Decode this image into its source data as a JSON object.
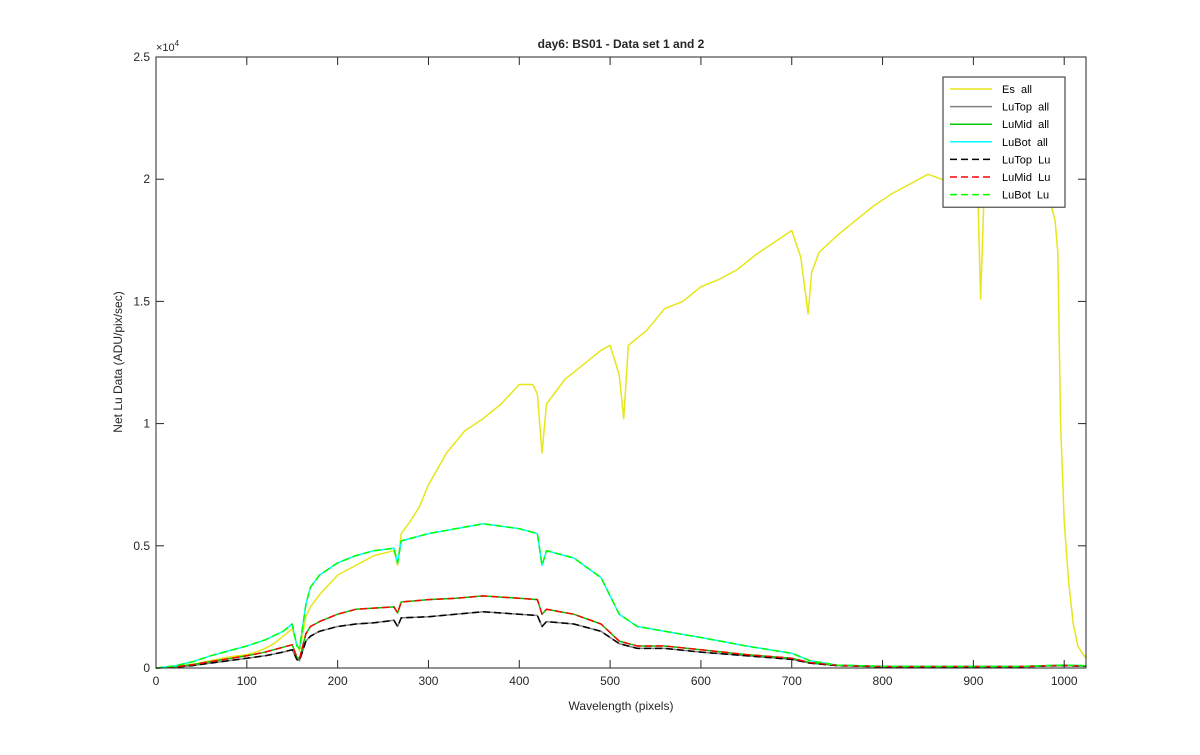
{
  "chart_data": {
    "type": "line",
    "title": "day6: BS01 - Data set 1 and 2",
    "xlabel": "Wavelength (pixels)",
    "ylabel": "Net Lu Data (ADU/pix/sec)",
    "xlim": [
      0,
      1024
    ],
    "ylim": [
      0,
      25000
    ],
    "x_ticks": [
      0,
      100,
      200,
      300,
      400,
      500,
      600,
      700,
      800,
      900,
      1000
    ],
    "y_ticks": [
      0,
      5000,
      10000,
      15000,
      20000,
      25000
    ],
    "y_tick_labels": [
      "0",
      "0.5",
      "1",
      "1.5",
      "2",
      "2.5"
    ],
    "y_exponent_base": "×10",
    "y_exponent_power": "4",
    "grid": false,
    "legend_position": "top-right",
    "series": [
      {
        "name": "Es  all",
        "color": "#e6e619",
        "style": "solid",
        "x": [
          0,
          20,
          40,
          60,
          80,
          100,
          110,
          120,
          130,
          140,
          150,
          155,
          158,
          165,
          170,
          180,
          200,
          220,
          240,
          262,
          266,
          270,
          280,
          290,
          300,
          320,
          340,
          360,
          380,
          400,
          415,
          420,
          425,
          430,
          450,
          470,
          490,
          500,
          510,
          515,
          520,
          540,
          560,
          580,
          600,
          620,
          640,
          660,
          680,
          700,
          710,
          718,
          722,
          730,
          750,
          770,
          790,
          810,
          830,
          850,
          865,
          880,
          895,
          905,
          908,
          912,
          920,
          940,
          960,
          975,
          985,
          990,
          993,
          996,
          1000,
          1005,
          1010,
          1015,
          1020,
          1024
        ],
        "y": [
          0,
          50,
          150,
          300,
          450,
          550,
          650,
          800,
          1000,
          1300,
          1600,
          1000,
          700,
          2100,
          2500,
          3000,
          3800,
          4200,
          4600,
          4800,
          4200,
          5500,
          6000,
          6600,
          7500,
          8800,
          9700,
          10200,
          10800,
          11600,
          11600,
          11200,
          8800,
          10800,
          11800,
          12400,
          13000,
          13200,
          12000,
          10200,
          13200,
          13800,
          14700,
          15000,
          15600,
          15900,
          16300,
          16900,
          17400,
          17900,
          16800,
          14500,
          16200,
          17000,
          17700,
          18300,
          18900,
          19400,
          19800,
          20200,
          20000,
          19800,
          19500,
          19300,
          15100,
          19700,
          19500,
          19500,
          19400,
          19200,
          19000,
          18300,
          17000,
          10000,
          6000,
          3500,
          1800,
          900,
          600,
          400
        ]
      },
      {
        "name": "LuTop  all",
        "color": "#808080",
        "style": "solid",
        "x": [
          0,
          20,
          40,
          60,
          80,
          100,
          120,
          140,
          150,
          155,
          158,
          165,
          170,
          180,
          200,
          220,
          240,
          262,
          266,
          270,
          300,
          330,
          360,
          380,
          400,
          420,
          425,
          430,
          460,
          490,
          510,
          530,
          560,
          600,
          650,
          700,
          720,
          750,
          800,
          850,
          900,
          950,
          980,
          1000,
          1024
        ],
        "y": [
          0,
          30,
          100,
          200,
          300,
          400,
          500,
          650,
          750,
          350,
          300,
          1100,
          1300,
          1500,
          1700,
          1800,
          1850,
          1950,
          1700,
          2050,
          2100,
          2200,
          2300,
          2250,
          2200,
          2150,
          1700,
          1900,
          1800,
          1500,
          1000,
          800,
          800,
          650,
          500,
          350,
          200,
          100,
          50,
          50,
          50,
          50,
          80,
          100,
          70
        ]
      },
      {
        "name": "LuMid  all",
        "color": "#00c800",
        "style": "solid",
        "x": [
          0,
          20,
          40,
          60,
          80,
          100,
          120,
          140,
          150,
          155,
          158,
          165,
          170,
          180,
          200,
          220,
          240,
          262,
          266,
          270,
          300,
          330,
          360,
          380,
          400,
          420,
          425,
          430,
          460,
          490,
          510,
          530,
          560,
          600,
          650,
          700,
          720,
          750,
          800,
          850,
          900,
          950,
          980,
          1000,
          1024
        ],
        "y": [
          0,
          40,
          130,
          260,
          380,
          500,
          650,
          850,
          950,
          450,
          380,
          1400,
          1700,
          1900,
          2200,
          2400,
          2450,
          2500,
          2250,
          2700,
          2800,
          2850,
          2950,
          2900,
          2850,
          2800,
          2200,
          2400,
          2200,
          1800,
          1100,
          900,
          900,
          750,
          550,
          400,
          220,
          110,
          60,
          60,
          60,
          60,
          90,
          110,
          80
        ]
      },
      {
        "name": "LuBot  all",
        "color": "#00ffff",
        "style": "solid",
        "x": [
          0,
          20,
          40,
          60,
          80,
          100,
          120,
          140,
          150,
          155,
          158,
          165,
          170,
          180,
          200,
          220,
          240,
          262,
          266,
          270,
          300,
          330,
          360,
          380,
          400,
          420,
          425,
          430,
          460,
          490,
          510,
          530,
          560,
          600,
          650,
          700,
          720,
          750,
          800,
          850,
          900,
          950,
          980,
          1000,
          1024
        ],
        "y": [
          0,
          80,
          250,
          500,
          700,
          900,
          1150,
          1500,
          1800,
          900,
          800,
          2600,
          3300,
          3800,
          4300,
          4600,
          4800,
          4900,
          4300,
          5200,
          5500,
          5700,
          5900,
          5800,
          5700,
          5500,
          4200,
          4800,
          4500,
          3700,
          2200,
          1700,
          1500,
          1250,
          900,
          600,
          300,
          120,
          70,
          60,
          60,
          60,
          100,
          120,
          90
        ]
      },
      {
        "name": "LuTop  Lu",
        "color": "#000000",
        "style": "dashed",
        "x": [
          0,
          20,
          40,
          60,
          80,
          100,
          120,
          140,
          150,
          155,
          158,
          165,
          170,
          180,
          200,
          220,
          240,
          262,
          266,
          270,
          300,
          330,
          360,
          380,
          400,
          420,
          425,
          430,
          460,
          490,
          510,
          530,
          560,
          600,
          650,
          700,
          720,
          750,
          800,
          850,
          900,
          950,
          980,
          1000,
          1024
        ],
        "y": [
          0,
          30,
          100,
          200,
          300,
          400,
          500,
          650,
          750,
          350,
          300,
          1100,
          1300,
          1500,
          1700,
          1800,
          1850,
          1950,
          1700,
          2050,
          2100,
          2200,
          2300,
          2250,
          2200,
          2150,
          1700,
          1900,
          1800,
          1500,
          1000,
          800,
          800,
          650,
          500,
          350,
          200,
          100,
          50,
          50,
          50,
          50,
          80,
          100,
          70
        ]
      },
      {
        "name": "LuMid  Lu",
        "color": "#ff0000",
        "style": "dashed",
        "x": [
          0,
          20,
          40,
          60,
          80,
          100,
          120,
          140,
          150,
          155,
          158,
          165,
          170,
          180,
          200,
          220,
          240,
          262,
          266,
          270,
          300,
          330,
          360,
          380,
          400,
          420,
          425,
          430,
          460,
          490,
          510,
          530,
          560,
          600,
          650,
          700,
          720,
          750,
          800,
          850,
          900,
          950,
          980,
          1000,
          1024
        ],
        "y": [
          0,
          40,
          130,
          260,
          380,
          500,
          650,
          850,
          950,
          450,
          380,
          1400,
          1700,
          1900,
          2200,
          2400,
          2450,
          2500,
          2250,
          2700,
          2800,
          2850,
          2950,
          2900,
          2850,
          2800,
          2200,
          2400,
          2200,
          1800,
          1100,
          900,
          900,
          750,
          550,
          400,
          220,
          110,
          60,
          60,
          60,
          60,
          90,
          110,
          80
        ]
      },
      {
        "name": "LuBot  Lu",
        "color": "#00ff00",
        "style": "dashed",
        "x": [
          0,
          20,
          40,
          60,
          80,
          100,
          120,
          140,
          150,
          155,
          158,
          165,
          170,
          180,
          200,
          220,
          240,
          262,
          266,
          270,
          300,
          330,
          360,
          380,
          400,
          420,
          425,
          430,
          460,
          490,
          510,
          530,
          560,
          600,
          650,
          700,
          720,
          750,
          800,
          850,
          900,
          950,
          980,
          1000,
          1024
        ],
        "y": [
          0,
          80,
          250,
          500,
          700,
          900,
          1150,
          1500,
          1800,
          900,
          800,
          2600,
          3300,
          3800,
          4300,
          4600,
          4800,
          4900,
          4300,
          5200,
          5500,
          5700,
          5900,
          5800,
          5700,
          5500,
          4200,
          4800,
          4500,
          3700,
          2200,
          1700,
          1500,
          1250,
          900,
          600,
          300,
          120,
          70,
          60,
          60,
          60,
          100,
          120,
          90
        ]
      }
    ]
  }
}
